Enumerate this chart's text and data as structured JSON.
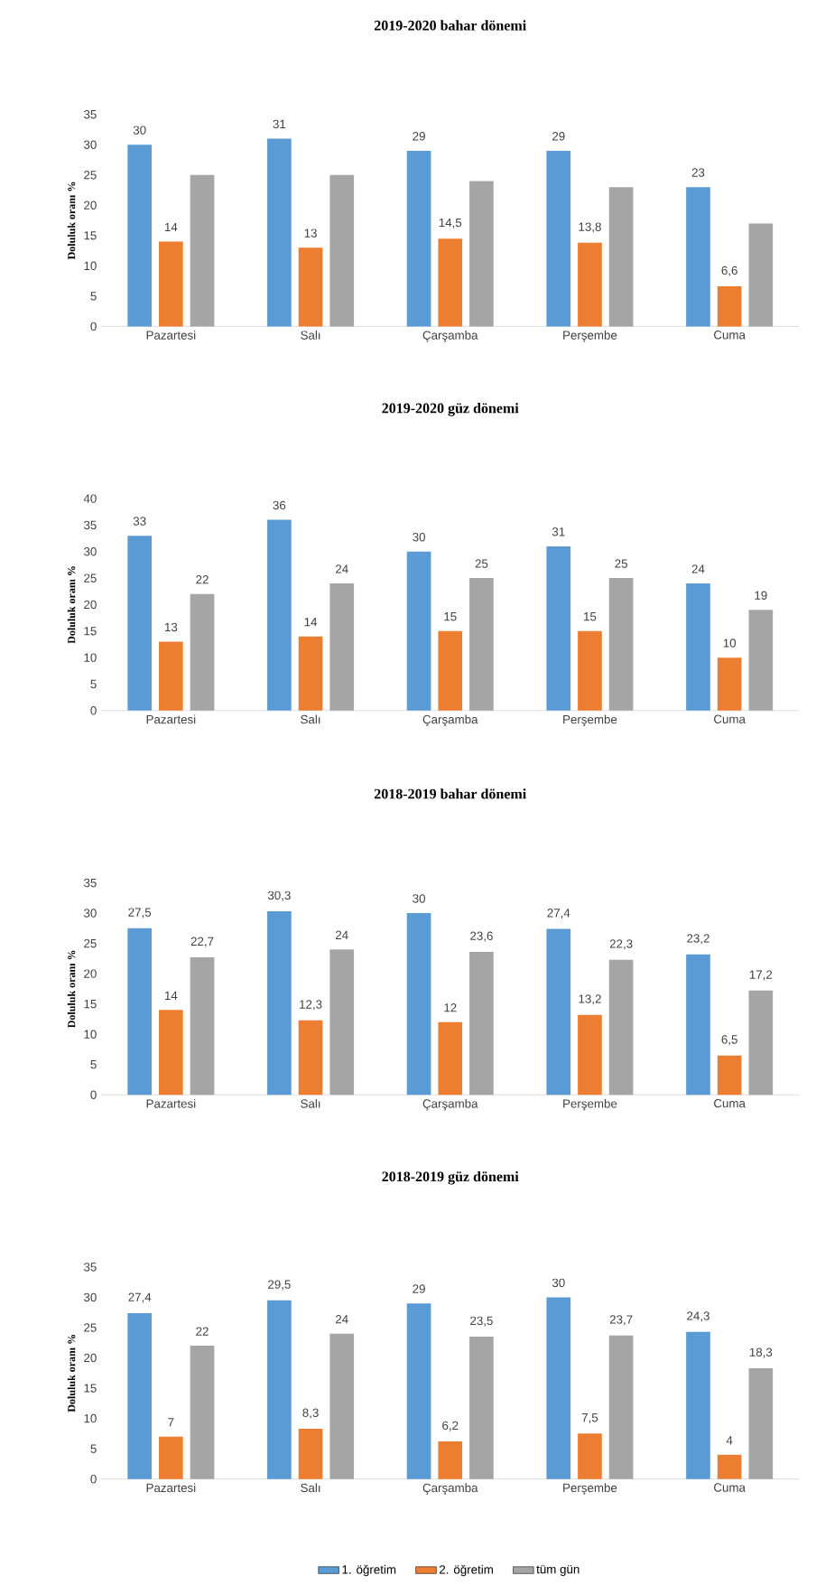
{
  "chart_data": [
    {
      "type": "bar",
      "title": "2019-2020 bahar dönemi",
      "ylabel": "Doluluk oranı %",
      "categories": [
        "Pazartesi",
        "Salı",
        "Çarşamba",
        "Perşembe",
        "Cuma"
      ],
      "ylim": [
        0,
        35
      ],
      "yticks": [
        0,
        5,
        10,
        15,
        20,
        25,
        30,
        35
      ],
      "legend": false,
      "series": [
        {
          "color": "#5b9bd5",
          "values": [
            30,
            31,
            29,
            29,
            23
          ],
          "value_labels": [
            "30",
            "31",
            "29",
            "29",
            "23"
          ]
        },
        {
          "color": "#ed7d31",
          "values": [
            14,
            13,
            14.5,
            13.8,
            6.6
          ],
          "value_labels": [
            "14",
            "13",
            "14,5",
            "13,8",
            "6,6"
          ]
        },
        {
          "color": "#a5a5a5",
          "values": [
            25,
            25,
            24,
            23,
            17
          ]
        }
      ]
    },
    {
      "type": "bar",
      "title": "2019-2020 güz dönemi",
      "ylabel": "Doluluk oranı %",
      "categories": [
        "Pazartesi",
        "Salı",
        "Çarşamba",
        "Perşembe",
        "Cuma"
      ],
      "ylim": [
        0,
        40
      ],
      "yticks": [
        0,
        5,
        10,
        15,
        20,
        25,
        30,
        35,
        40
      ],
      "legend": false,
      "series": [
        {
          "color": "#5b9bd5",
          "values": [
            33,
            36,
            30,
            31,
            24
          ],
          "value_labels": [
            "33",
            "36",
            "30",
            "31",
            "24"
          ]
        },
        {
          "color": "#ed7d31",
          "values": [
            13,
            14,
            15,
            15,
            10
          ],
          "value_labels": [
            "13",
            "14",
            "15",
            "15",
            "10"
          ]
        },
        {
          "color": "#a5a5a5",
          "values": [
            22,
            24,
            25,
            25,
            19
          ],
          "value_labels": [
            "22",
            "24",
            "25",
            "25",
            "19"
          ]
        }
      ]
    },
    {
      "type": "bar",
      "title": "2018-2019 bahar dönemi",
      "ylabel": "Doluluk oranı %",
      "categories": [
        "Pazartesi",
        "Salı",
        "Çarşamba",
        "Perşembe",
        "Cuma"
      ],
      "ylim": [
        0,
        35
      ],
      "yticks": [
        0,
        5,
        10,
        15,
        20,
        25,
        30,
        35
      ],
      "legend": false,
      "series": [
        {
          "color": "#5b9bd5",
          "values": [
            27.5,
            30.3,
            30,
            27.4,
            23.2
          ],
          "value_labels": [
            "27,5",
            "30,3",
            "30",
            "27,4",
            "23,2"
          ]
        },
        {
          "color": "#ed7d31",
          "values": [
            14,
            12.3,
            12,
            13.2,
            6.5
          ],
          "value_labels": [
            "14",
            "12,3",
            "12",
            "13,2",
            "6,5"
          ]
        },
        {
          "color": "#a5a5a5",
          "values": [
            22.7,
            24,
            23.6,
            22.3,
            17.2
          ],
          "value_labels": [
            "22,7",
            "24",
            "23,6",
            "22,3",
            "17,2"
          ]
        }
      ]
    },
    {
      "type": "bar",
      "title": "2018-2019 güz dönemi",
      "ylabel": "Doluluk oranı %",
      "categories": [
        "Pazartesi",
        "Salı",
        "Çarşamba",
        "Perşembe",
        "Cuma"
      ],
      "ylim": [
        0,
        35
      ],
      "yticks": [
        0,
        5,
        10,
        15,
        20,
        25,
        30,
        35
      ],
      "legend": "bottom",
      "series": [
        {
          "name": "1. öğretim",
          "color": "#5b9bd5",
          "values": [
            27.4,
            29.5,
            29,
            30,
            24.3
          ],
          "value_labels": [
            "27,4",
            "29,5",
            "29",
            "30",
            "24,3"
          ]
        },
        {
          "name": "2. öğretim",
          "color": "#ed7d31",
          "values": [
            7,
            8.3,
            6.2,
            7.5,
            4
          ],
          "value_labels": [
            "7",
            "8,3",
            "6,2",
            "7,5",
            "4"
          ]
        },
        {
          "name": "tüm gün",
          "color": "#a5a5a5",
          "values": [
            22,
            24,
            23.5,
            23.7,
            18.3
          ],
          "value_labels": [
            "22",
            "24",
            "23,5",
            "23,7",
            "18,3"
          ]
        }
      ]
    }
  ]
}
